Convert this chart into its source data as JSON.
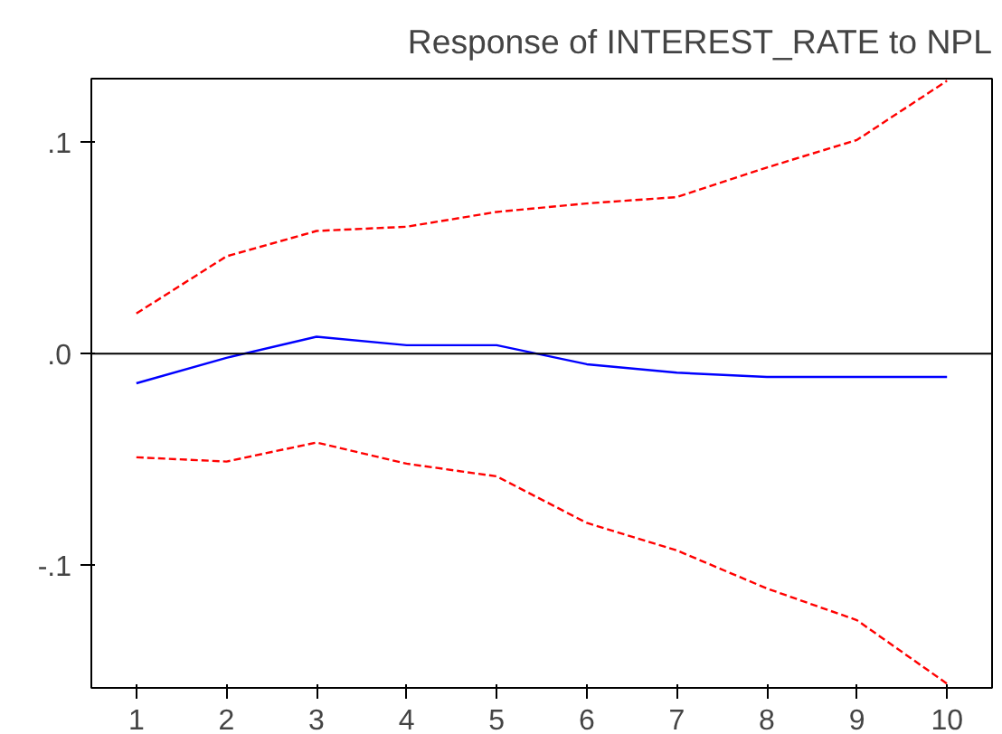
{
  "chart_data": {
    "type": "line",
    "title": "Response of INTEREST_RATE to NPL",
    "x": [
      1,
      2,
      3,
      4,
      5,
      6,
      7,
      8,
      9,
      10
    ],
    "series": [
      {
        "color": "#0000ff",
        "line_style": "solid",
        "values": [
          -0.014,
          -0.002,
          0.008,
          0.004,
          0.004,
          -0.005,
          -0.009,
          -0.011,
          -0.011,
          -0.011
        ]
      },
      {
        "color": "#ff0000",
        "line_style": "dashed",
        "values": [
          0.019,
          0.046,
          0.058,
          0.06,
          0.067,
          0.071,
          0.074,
          0.088,
          0.101,
          0.129
        ]
      },
      {
        "color": "#ff0000",
        "line_style": "dashed",
        "values": [
          -0.049,
          -0.051,
          -0.042,
          -0.052,
          -0.058,
          -0.08,
          -0.093,
          -0.111,
          -0.126,
          -0.156
        ]
      }
    ],
    "xlim": [
      0.5,
      10.5
    ],
    "ylim": [
      -0.158,
      0.13
    ],
    "xticks": [
      1,
      2,
      3,
      4,
      5,
      6,
      7,
      8,
      9,
      10
    ],
    "yticks": [
      {
        "value": -0.1,
        "label": "-.1"
      },
      {
        "value": 0,
        "label": ".0"
      },
      {
        "value": 0.1,
        "label": ".1"
      }
    ],
    "ref_lines": [
      {
        "axis": "y",
        "value": 0,
        "color": "#000000"
      }
    ],
    "grid": false
  }
}
